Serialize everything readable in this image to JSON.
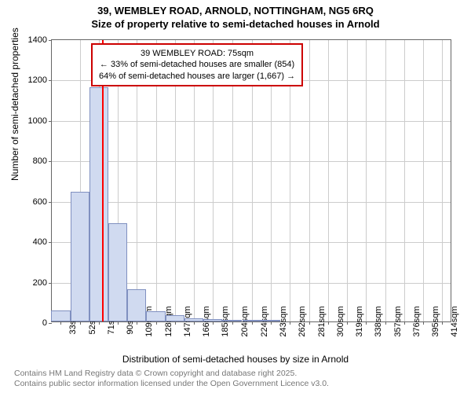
{
  "title_line1": "39, WEMBLEY ROAD, ARNOLD, NOTTINGHAM, NG5 6RQ",
  "title_line2": "Size of property relative to semi-detached houses in Arnold",
  "chart": {
    "type": "histogram",
    "y_label": "Number of semi-detached properties",
    "x_label": "Distribution of semi-detached houses by size in Arnold",
    "ylim": [
      0,
      1400
    ],
    "ytick_step": 200,
    "y_ticks": [
      0,
      200,
      400,
      600,
      800,
      1000,
      1200,
      1400
    ],
    "x_ticks": [
      "33sqm",
      "52sqm",
      "71sqm",
      "90sqm",
      "109sqm",
      "128sqm",
      "147sqm",
      "166sqm",
      "185sqm",
      "204sqm",
      "224sqm",
      "243sqm",
      "262sqm",
      "281sqm",
      "300sqm",
      "319sqm",
      "338sqm",
      "357sqm",
      "376sqm",
      "395sqm",
      "414sqm"
    ],
    "x_tick_values": [
      33,
      52,
      71,
      90,
      109,
      128,
      147,
      166,
      185,
      204,
      224,
      243,
      262,
      281,
      300,
      319,
      338,
      357,
      376,
      395,
      414
    ],
    "x_range": [
      24,
      424
    ],
    "bars": [
      {
        "x": 33,
        "value": 55
      },
      {
        "x": 52,
        "value": 640
      },
      {
        "x": 71,
        "value": 1160
      },
      {
        "x": 90,
        "value": 485
      },
      {
        "x": 109,
        "value": 160
      },
      {
        "x": 128,
        "value": 50
      },
      {
        "x": 147,
        "value": 30
      },
      {
        "x": 166,
        "value": 15
      },
      {
        "x": 185,
        "value": 10
      },
      {
        "x": 204,
        "value": 8
      },
      {
        "x": 224,
        "value": 6
      },
      {
        "x": 243,
        "value": 3
      }
    ],
    "bar_width_sqm": 19,
    "bar_fill": "#d0daf0",
    "bar_border": "#8090c0",
    "grid_color": "#cccccc",
    "background": "#ffffff",
    "axis_color": "#666666"
  },
  "marker": {
    "x_value": 75,
    "color": "#ff0000"
  },
  "annotation": {
    "line1": "39 WEMBLEY ROAD: 75sqm",
    "line2": "← 33% of semi-detached houses are smaller (854)",
    "line3": "64% of semi-detached houses are larger (1,667) →",
    "border_color": "#cc0000",
    "background": "#ffffff"
  },
  "attribution": {
    "line1": "Contains HM Land Registry data © Crown copyright and database right 2025.",
    "line2": "Contains public sector information licensed under the Open Government Licence v3.0."
  }
}
